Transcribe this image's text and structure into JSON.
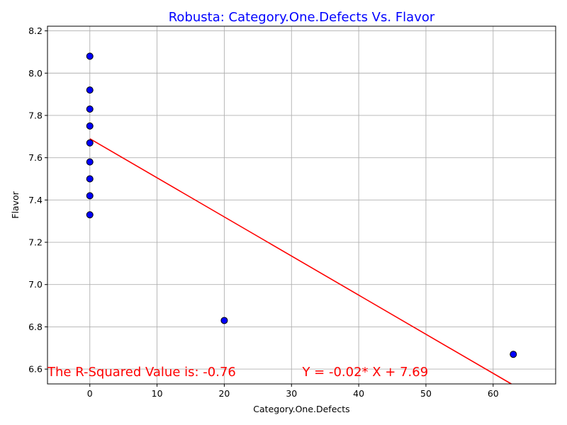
{
  "chart_data": {
    "type": "scatter",
    "title": "Robusta: Category.One.Defects Vs. Flavor",
    "xlabel": "Category.One.Defects",
    "ylabel": "Flavor",
    "xlim": [
      -6.3,
      69.3
    ],
    "ylim": [
      6.53,
      8.222
    ],
    "xticks": [
      0,
      10,
      20,
      30,
      40,
      50,
      60
    ],
    "xtick_labels": [
      "0",
      "10",
      "20",
      "30",
      "40",
      "50",
      "60"
    ],
    "yticks": [
      6.6,
      6.8,
      7.0,
      7.2,
      7.4,
      7.6,
      7.8,
      8.0,
      8.2
    ],
    "ytick_labels": [
      "6.6",
      "6.8",
      "7.0",
      "7.2",
      "7.4",
      "7.6",
      "7.8",
      "8.0",
      "8.2"
    ],
    "grid": true,
    "points": [
      {
        "x": 0,
        "y": 8.08
      },
      {
        "x": 0,
        "y": 7.92
      },
      {
        "x": 0,
        "y": 7.83
      },
      {
        "x": 0,
        "y": 7.75
      },
      {
        "x": 0,
        "y": 7.67
      },
      {
        "x": 0,
        "y": 7.58
      },
      {
        "x": 0,
        "y": 7.5
      },
      {
        "x": 0,
        "y": 7.42
      },
      {
        "x": 0,
        "y": 7.33
      },
      {
        "x": 20,
        "y": 6.83
      },
      {
        "x": 63,
        "y": 6.67
      }
    ],
    "regression": {
      "slope": -0.0185,
      "intercept": 7.69,
      "x_range": [
        0,
        63
      ]
    },
    "annotations": [
      {
        "text": "The R-Squared Value is: -0.76",
        "x": -6.3,
        "y": 6.567
      },
      {
        "text": "Y = -0.02* X + 7.69",
        "x": 31.6,
        "y": 6.567
      }
    ],
    "colors": {
      "title": "#0000ff",
      "marker_fill": "#0000ff",
      "marker_edge": "#000000",
      "line": "#ff0000",
      "annotation": "#ff0000",
      "grid": "#b0b0b0"
    }
  }
}
